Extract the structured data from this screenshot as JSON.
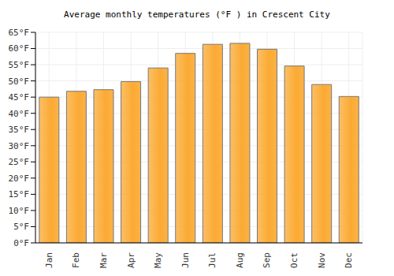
{
  "chart_data": {
    "type": "bar",
    "title": "Average monthly temperatures (°F ) in Crescent City",
    "categories": [
      "Jan",
      "Feb",
      "Mar",
      "Apr",
      "May",
      "Jun",
      "Jul",
      "Aug",
      "Sep",
      "Oct",
      "Nov",
      "Dec"
    ],
    "values": [
      45,
      46.8,
      47.3,
      49.8,
      54,
      58.5,
      61.3,
      61.6,
      59.8,
      54.6,
      48.9,
      45.2
    ],
    "color": "#fbaa33",
    "ylim": [
      0,
      65
    ],
    "yticks": [
      {
        "value": 0,
        "label": "0°F"
      },
      {
        "value": 5,
        "label": "5°F"
      },
      {
        "value": 10,
        "label": "10°F"
      },
      {
        "value": 15,
        "label": "15°F"
      },
      {
        "value": 20,
        "label": "20°F"
      },
      {
        "value": 25,
        "label": "25°F"
      },
      {
        "value": 30,
        "label": "30°F"
      },
      {
        "value": 35,
        "label": "35°F"
      },
      {
        "value": 40,
        "label": "40°F"
      },
      {
        "value": 45,
        "label": "45°F"
      },
      {
        "value": 50,
        "label": "50°F"
      },
      {
        "value": 55,
        "label": "55°F"
      },
      {
        "value": 60,
        "label": "60°F"
      },
      {
        "value": 65,
        "label": "65°F"
      }
    ],
    "grid": true
  }
}
